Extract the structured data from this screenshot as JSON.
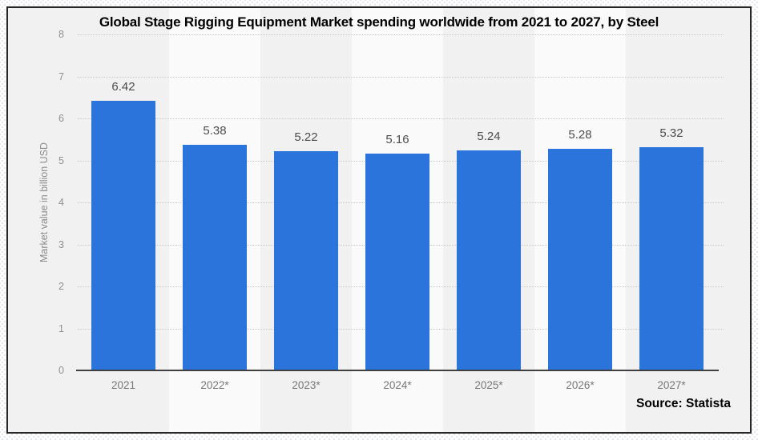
{
  "chart_data": {
    "type": "bar",
    "title": "Global Stage Rigging Equipment Market spending worldwide from 2021 to 2027, by Steel",
    "categories": [
      "2021",
      "2022*",
      "2023*",
      "2024*",
      "2025*",
      "2026*",
      "2027*"
    ],
    "values": [
      6.42,
      5.38,
      5.22,
      5.16,
      5.24,
      5.28,
      5.32
    ],
    "value_labels": [
      "6.42",
      "5.38",
      "5.22",
      "5.16",
      "5.24",
      "5.28",
      "5.32"
    ],
    "xlabel": "",
    "ylabel": "Market value in billion USD",
    "ylim": [
      0,
      8
    ],
    "yticks": [
      0,
      1,
      2,
      3,
      4,
      5,
      6,
      7,
      8
    ],
    "grid": "horizontal-dotted",
    "legend": "none",
    "bar_color": "#2b74db",
    "band_color": "#fafafa",
    "background_color": "#f1f1f2",
    "source": "Source: Statista"
  }
}
